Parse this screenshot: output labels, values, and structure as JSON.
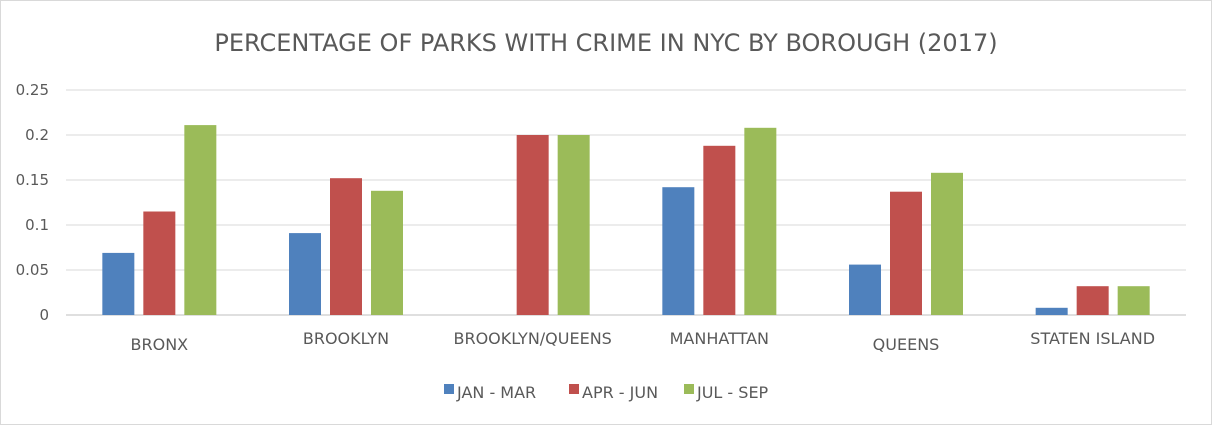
{
  "chart_data": {
    "type": "bar",
    "title": "PERCENTAGE OF PARKS WITH CRIME IN NYC BY BOROUGH (2017)",
    "xlabel": "",
    "ylabel": "",
    "categories": [
      "BRONX",
      "BROOKLYN",
      "BROOKLYN/QUEENS",
      "MANHATTAN",
      "QUEENS",
      "STATEN ISLAND"
    ],
    "series": [
      {
        "name": "JAN - MAR",
        "color": "#4f81bd",
        "values": [
          0.069,
          0.091,
          null,
          0.142,
          0.056,
          0.008
        ]
      },
      {
        "name": "APR - JUN",
        "color": "#c0504d",
        "values": [
          0.115,
          0.152,
          0.2,
          0.188,
          0.137,
          0.032
        ]
      },
      {
        "name": "JUL - SEP",
        "color": "#9bbb59",
        "values": [
          0.211,
          0.138,
          0.2,
          0.208,
          0.158,
          0.032
        ]
      }
    ],
    "ylim": [
      0,
      0.25
    ],
    "yticks": [
      "0",
      "0.05",
      "0.1",
      "0.15",
      "0.2",
      "0.25"
    ],
    "grid": true,
    "legend_position": "bottom"
  }
}
